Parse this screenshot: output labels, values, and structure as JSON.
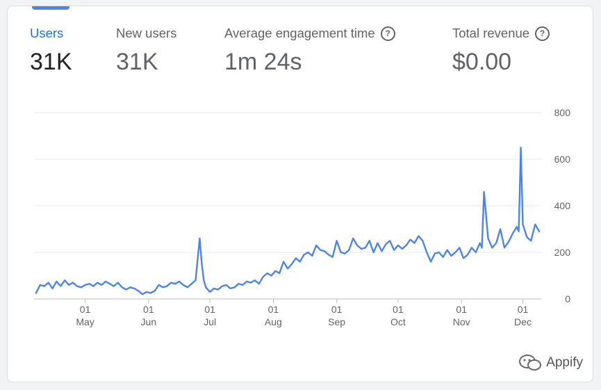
{
  "metrics": [
    {
      "label": "Users",
      "value": "31K",
      "active": true,
      "help": false
    },
    {
      "label": "New users",
      "value": "31K",
      "active": false,
      "help": false
    },
    {
      "label": "Average engagement time",
      "value": "1m 24s",
      "active": false,
      "help": true
    },
    {
      "label": "Total revenue",
      "value": "$0.00",
      "active": false,
      "help": true
    }
  ],
  "watermark": {
    "text": "Appify"
  },
  "colors": {
    "line": "#4c84e8",
    "grid": "#e6e6e6",
    "axis": "#5f6368",
    "accent": "#1a73e8"
  },
  "chart_data": {
    "type": "line",
    "title": "",
    "xlabel": "",
    "ylabel": "",
    "ylim": [
      0,
      800
    ],
    "y_ticks": [
      0,
      200,
      400,
      600,
      800
    ],
    "x_ticks": [
      {
        "day": "01",
        "month": "May",
        "date": "2024-05-01"
      },
      {
        "day": "01",
        "month": "Jun",
        "date": "2024-06-01"
      },
      {
        "day": "01",
        "month": "Jul",
        "date": "2024-07-01"
      },
      {
        "day": "01",
        "month": "Aug",
        "date": "2024-08-01"
      },
      {
        "day": "01",
        "month": "Sep",
        "date": "2024-09-01"
      },
      {
        "day": "01",
        "month": "Oct",
        "date": "2024-10-01"
      },
      {
        "day": "01",
        "month": "Nov",
        "date": "2024-11-01"
      },
      {
        "day": "01",
        "month": "Dec",
        "date": "2024-12-01"
      }
    ],
    "x_range": [
      "2024-04-06",
      "2024-12-10"
    ],
    "grid": true,
    "legend": "none",
    "series": [
      {
        "x": [
          "2024-04-07",
          "2024-04-09",
          "2024-04-11",
          "2024-04-13",
          "2024-04-15",
          "2024-04-17",
          "2024-04-19",
          "2024-04-21",
          "2024-04-23",
          "2024-04-25",
          "2024-04-27",
          "2024-04-29",
          "2024-05-01",
          "2024-05-03",
          "2024-05-05",
          "2024-05-07",
          "2024-05-09",
          "2024-05-11",
          "2024-05-13",
          "2024-05-15",
          "2024-05-17",
          "2024-05-19",
          "2024-05-21",
          "2024-05-23",
          "2024-05-25",
          "2024-05-27",
          "2024-05-29",
          "2024-05-31",
          "2024-06-02",
          "2024-06-04",
          "2024-06-06",
          "2024-06-08",
          "2024-06-10",
          "2024-06-12",
          "2024-06-14",
          "2024-06-16",
          "2024-06-18",
          "2024-06-20",
          "2024-06-22",
          "2024-06-24",
          "2024-06-26",
          "2024-06-27",
          "2024-06-28",
          "2024-06-29",
          "2024-07-01",
          "2024-07-03",
          "2024-07-05",
          "2024-07-07",
          "2024-07-09",
          "2024-07-11",
          "2024-07-13",
          "2024-07-15",
          "2024-07-17",
          "2024-07-19",
          "2024-07-21",
          "2024-07-23",
          "2024-07-25",
          "2024-07-27",
          "2024-07-29",
          "2024-07-31",
          "2024-08-02",
          "2024-08-04",
          "2024-08-06",
          "2024-08-08",
          "2024-08-10",
          "2024-08-12",
          "2024-08-14",
          "2024-08-16",
          "2024-08-18",
          "2024-08-20",
          "2024-08-22",
          "2024-08-24",
          "2024-08-26",
          "2024-08-28",
          "2024-08-30",
          "2024-09-01",
          "2024-09-03",
          "2024-09-05",
          "2024-09-07",
          "2024-09-09",
          "2024-09-11",
          "2024-09-13",
          "2024-09-15",
          "2024-09-17",
          "2024-09-19",
          "2024-09-21",
          "2024-09-23",
          "2024-09-25",
          "2024-09-27",
          "2024-09-29",
          "2024-10-01",
          "2024-10-03",
          "2024-10-05",
          "2024-10-07",
          "2024-10-09",
          "2024-10-11",
          "2024-10-13",
          "2024-10-15",
          "2024-10-17",
          "2024-10-19",
          "2024-10-21",
          "2024-10-23",
          "2024-10-25",
          "2024-10-27",
          "2024-10-29",
          "2024-10-31",
          "2024-11-02",
          "2024-11-04",
          "2024-11-06",
          "2024-11-08",
          "2024-11-10",
          "2024-11-11",
          "2024-11-12",
          "2024-11-14",
          "2024-11-16",
          "2024-11-18",
          "2024-11-20",
          "2024-11-22",
          "2024-11-24",
          "2024-11-26",
          "2024-11-28",
          "2024-11-29",
          "2024-11-30",
          "2024-12-01",
          "2024-12-03",
          "2024-12-05",
          "2024-12-07",
          "2024-12-09"
        ],
        "values": [
          25,
          60,
          55,
          70,
          45,
          75,
          55,
          80,
          60,
          70,
          55,
          50,
          60,
          65,
          55,
          70,
          60,
          75,
          65,
          55,
          70,
          50,
          40,
          50,
          45,
          35,
          20,
          30,
          25,
          35,
          60,
          50,
          55,
          70,
          65,
          75,
          60,
          50,
          65,
          80,
          260,
          150,
          80,
          50,
          30,
          45,
          40,
          55,
          60,
          45,
          50,
          65,
          60,
          75,
          70,
          80,
          65,
          95,
          110,
          100,
          120,
          110,
          160,
          130,
          150,
          175,
          160,
          190,
          200,
          185,
          230,
          210,
          205,
          190,
          180,
          250,
          200,
          195,
          210,
          260,
          230,
          215,
          220,
          250,
          200,
          240,
          205,
          235,
          250,
          210,
          230,
          215,
          230,
          255,
          240,
          270,
          250,
          200,
          160,
          195,
          200,
          180,
          210,
          185,
          200,
          220,
          175,
          190,
          220,
          200,
          240,
          220,
          460,
          260,
          220,
          240,
          300,
          220,
          245,
          280,
          310,
          290,
          650,
          320,
          265,
          250,
          320,
          290
        ]
      }
    ]
  }
}
